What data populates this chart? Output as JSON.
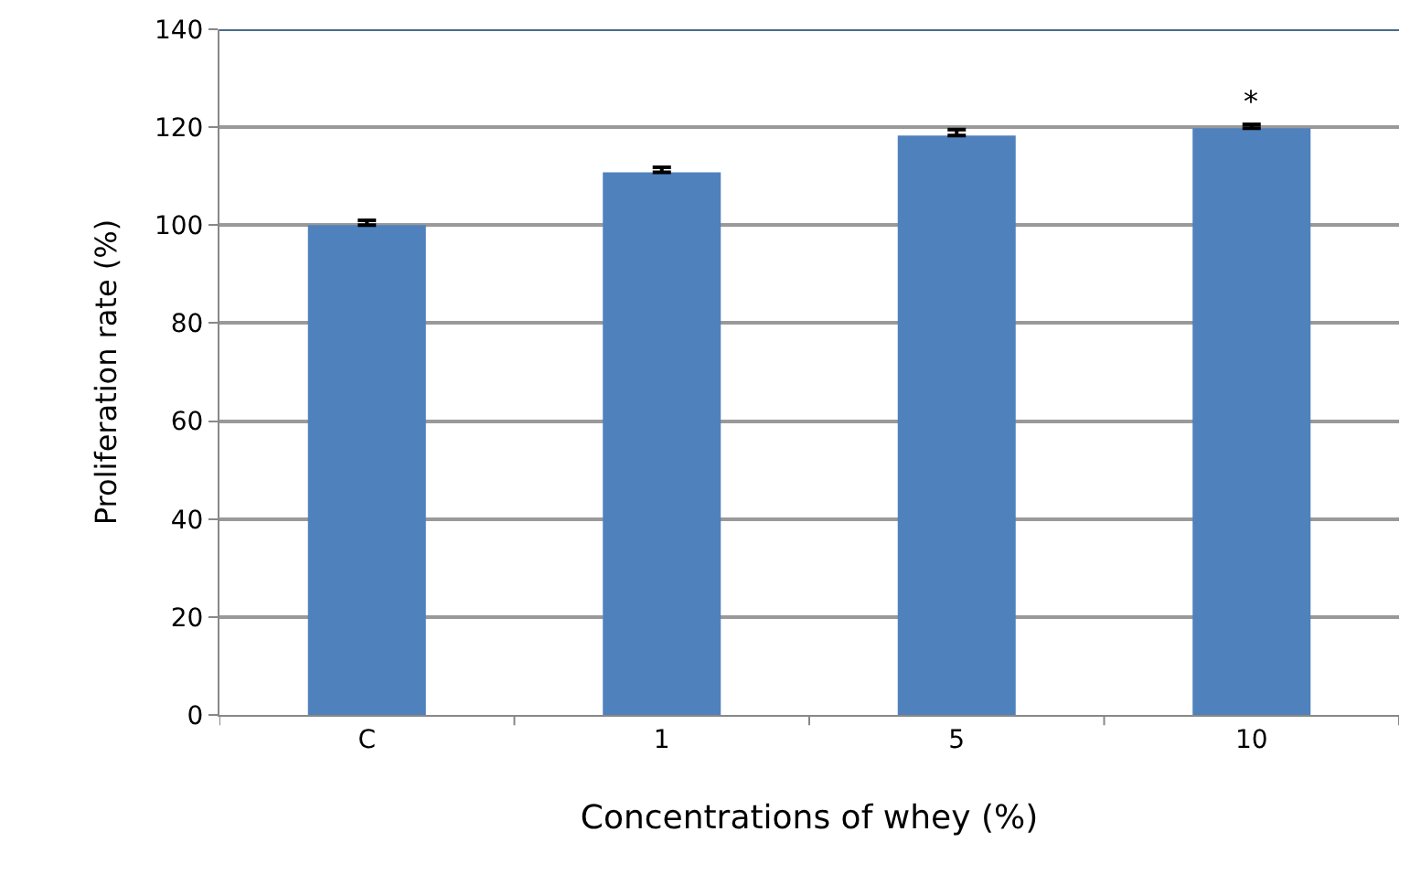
{
  "chart_data": {
    "type": "bar",
    "xlabel": "Concentrations of whey (%)",
    "ylabel": "Proliferation rate (%)",
    "categories": [
      "C",
      "1",
      "5",
      "10"
    ],
    "values": [
      100,
      110.8,
      118.3,
      119.8
    ],
    "errors": [
      [
        100,
        101
      ],
      [
        110.8,
        111.8
      ],
      [
        118.3,
        119.5
      ],
      [
        119.8,
        120.6
      ]
    ],
    "color": "#4f81bd",
    "ylim": [
      0,
      140
    ],
    "yticks": [
      0,
      20,
      40,
      60,
      80,
      100,
      120,
      140
    ],
    "grid": "y",
    "legend": false,
    "annotations": [
      {
        "text": "*",
        "x": "10",
        "y": 120.6
      }
    ]
  }
}
